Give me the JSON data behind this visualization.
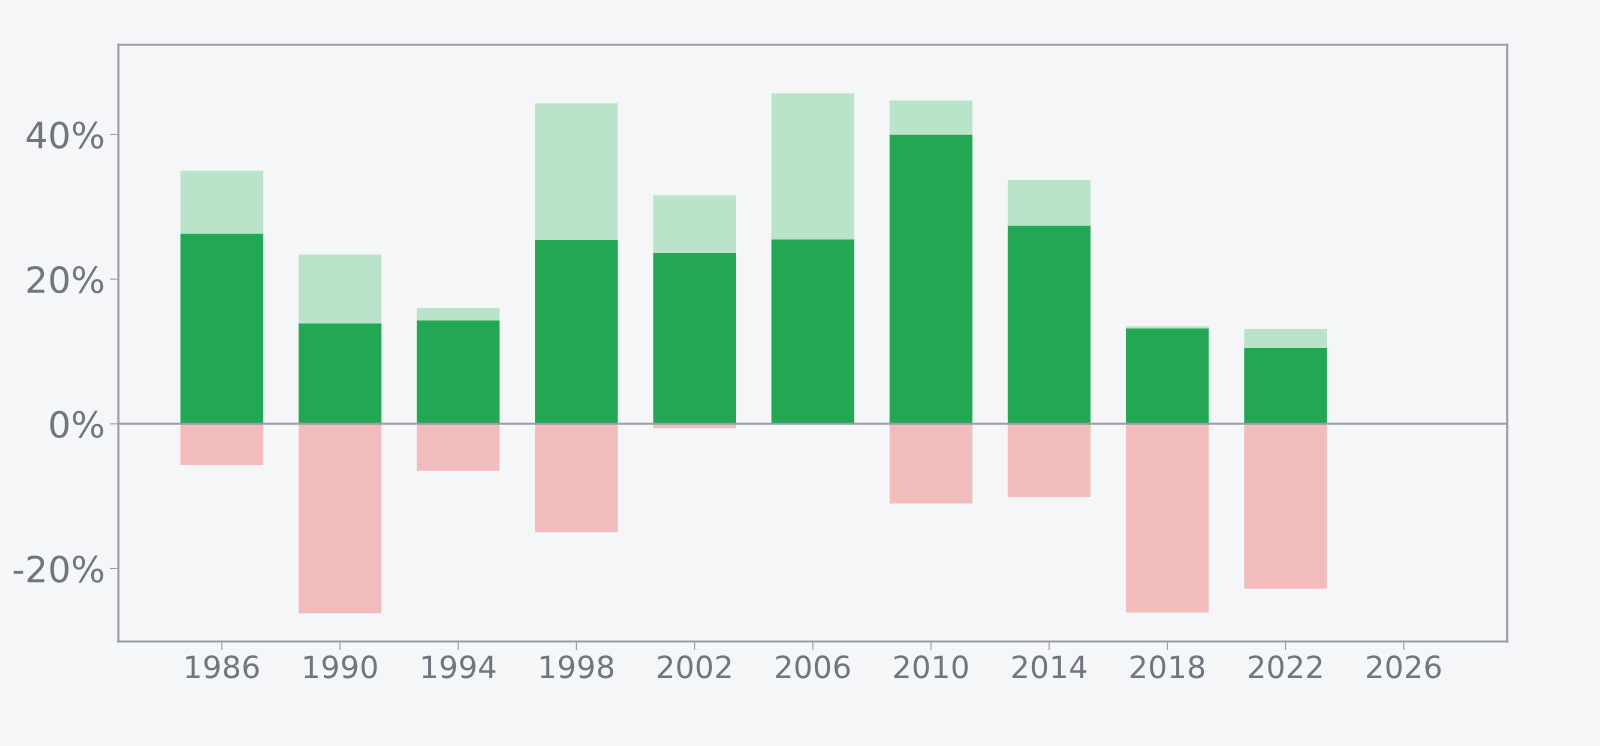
{
  "chart_data": {
    "type": "bar",
    "stacked": true,
    "x": [
      1986,
      1990,
      1994,
      1998,
      2002,
      2006,
      2010,
      2014,
      2018,
      2022
    ],
    "series": [
      {
        "color": "#22a753",
        "values": [
          26.3,
          13.9,
          14.3,
          25.4,
          23.6,
          25.5,
          40.0,
          27.4,
          13.2,
          10.5
        ]
      },
      {
        "color": "#b9e4c9",
        "values": [
          8.7,
          9.5,
          1.7,
          18.9,
          8.0,
          20.2,
          4.7,
          6.3,
          0.3,
          2.6
        ]
      },
      {
        "color": "#f3bcbc",
        "values": [
          -5.7,
          -26.2,
          -6.5,
          -15.0,
          -0.6,
          null,
          -11.0,
          -10.1,
          -26.1,
          -22.8
        ]
      }
    ],
    "xlim": [
      1982.5,
      2029.5
    ],
    "xticks": [
      1986,
      1990,
      1994,
      1998,
      2002,
      2006,
      2010,
      2014,
      2018,
      2022,
      2026
    ],
    "ylim": [
      -30.1,
      52.4
    ],
    "yticks": [
      {
        "value": -20,
        "label": "-20%"
      },
      {
        "value": 0,
        "label": "0%"
      },
      {
        "value": 20,
        "label": "20%"
      },
      {
        "value": 40,
        "label": "40%"
      }
    ],
    "ref_lines": [
      {
        "axis": "y",
        "value": 0,
        "color": "#9a9ca8"
      }
    ],
    "grid": false,
    "legend": false
  }
}
